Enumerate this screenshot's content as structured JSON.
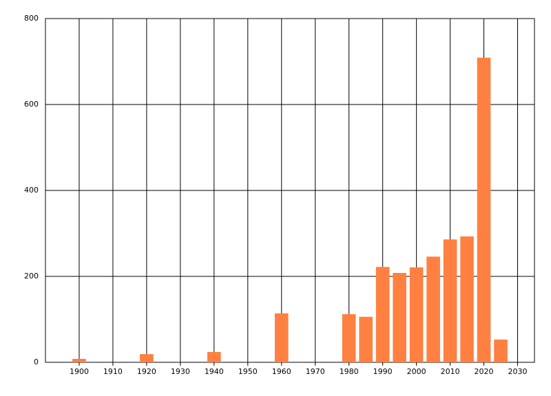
{
  "chart_data": {
    "type": "bar",
    "x": [
      1900,
      1920,
      1940,
      1960,
      1980,
      1985,
      1990,
      1995,
      2000,
      2005,
      2010,
      2015,
      2020,
      2025
    ],
    "values": [
      8,
      19,
      24,
      114,
      112,
      106,
      222,
      208,
      221,
      246,
      286,
      293,
      709,
      53
    ],
    "color": "#ff8040",
    "xlim": [
      1890,
      2035
    ],
    "xticks": [
      1900,
      1910,
      1920,
      1930,
      1940,
      1950,
      1960,
      1970,
      1980,
      1990,
      2000,
      2010,
      2020,
      2030
    ],
    "ylim": [
      0,
      800
    ],
    "yticks": [
      0,
      200,
      400,
      600,
      800
    ],
    "grid": true
  }
}
